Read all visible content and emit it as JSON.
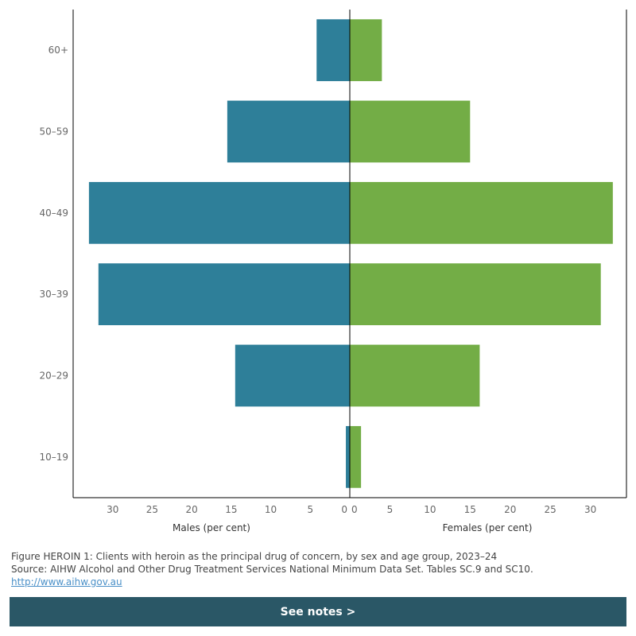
{
  "chart_data": {
    "type": "bar",
    "orientation": "horizontal-butterfly",
    "categories": [
      "60+",
      "50–59",
      "40–49",
      "30–39",
      "20–29",
      "10–19"
    ],
    "series": [
      {
        "name": "Males (per cent)",
        "side": "left",
        "color": "#2e7f99",
        "values": [
          4.2,
          15.5,
          33.0,
          31.8,
          14.5,
          0.5
        ]
      },
      {
        "name": "Females (per cent)",
        "side": "right",
        "color": "#73ad46",
        "values": [
          4.0,
          15.0,
          32.8,
          31.3,
          16.2,
          1.4
        ]
      }
    ],
    "xlabel_left": "Males (per cent)",
    "xlabel_right": "Females (per cent)",
    "left_ticks": [
      "30",
      "25",
      "20",
      "15",
      "10",
      "5",
      "0"
    ],
    "right_ticks": [
      "0",
      "5",
      "10",
      "15",
      "20",
      "25",
      "30"
    ],
    "xlim_left": [
      0,
      35
    ],
    "xlim_right": [
      0,
      34.5
    ],
    "grid": false
  },
  "footer": {
    "caption": "Figure HEROIN 1: Clients with heroin as the principal drug of concern, by sex and age group, 2023–24",
    "source": "Source: AIHW Alcohol and Other Drug Treatment Services National Minimum Data Set. Tables SC.9 and SC10.",
    "link": "http://www.aihw.gov.au"
  },
  "button": {
    "label": "See notes >"
  }
}
